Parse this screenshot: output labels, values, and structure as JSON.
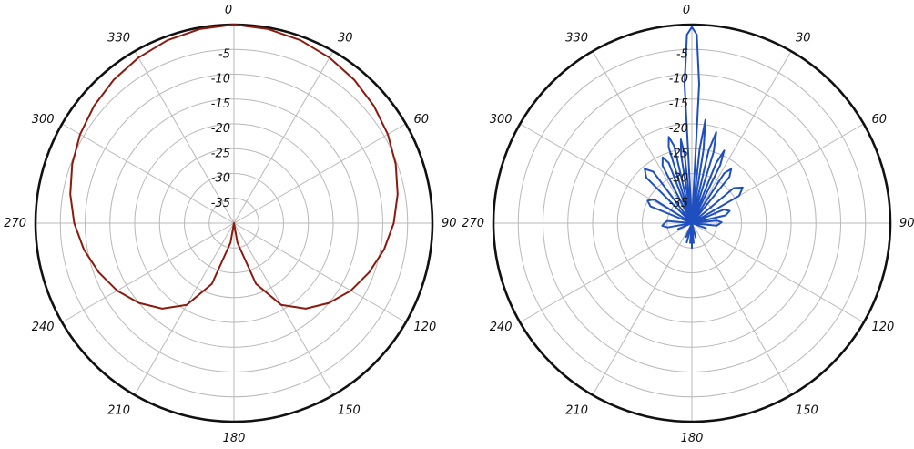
{
  "figure": {
    "background": "#ffffff",
    "grid_color": "#b8b8b8",
    "ring_color": "#111111"
  },
  "chart_data": [
    {
      "type": "polar-line",
      "title": "",
      "angle_unit": "degrees",
      "angle_direction": "clockwise",
      "zero_location": "top",
      "angular_ticks": [
        {
          "angle": 0,
          "label": "0"
        },
        {
          "angle": 30,
          "label": "30"
        },
        {
          "angle": 60,
          "label": "60"
        },
        {
          "angle": 90,
          "label": "90"
        },
        {
          "angle": 120,
          "label": "120"
        },
        {
          "angle": 150,
          "label": "150"
        },
        {
          "angle": 180,
          "label": "180"
        },
        {
          "angle": 210,
          "label": "210"
        },
        {
          "angle": 240,
          "label": "240"
        },
        {
          "angle": 270,
          "label": "270"
        },
        {
          "angle": 300,
          "label": "300"
        },
        {
          "angle": 330,
          "label": "330"
        }
      ],
      "radial_ticks": [
        {
          "value": -5,
          "label": "-5"
        },
        {
          "value": -10,
          "label": "-10"
        },
        {
          "value": -15,
          "label": "-15"
        },
        {
          "value": -20,
          "label": "-20"
        },
        {
          "value": -25,
          "label": "-25"
        },
        {
          "value": -30,
          "label": "-30"
        },
        {
          "value": -35,
          "label": "-35"
        }
      ],
      "rlim": [
        -40,
        0
      ],
      "grid": true,
      "series": [
        {
          "color": "#8b1a0e",
          "points": [
            [
              0,
              0
            ],
            [
              10,
              -0.3
            ],
            [
              20,
              -0.8
            ],
            [
              30,
              -1.5
            ],
            [
              40,
              -2.3
            ],
            [
              50,
              -3.2
            ],
            [
              60,
              -4.2
            ],
            [
              70,
              -5.3
            ],
            [
              80,
              -6.5
            ],
            [
              90,
              -7.8
            ],
            [
              100,
              -9.3
            ],
            [
              110,
              -11
            ],
            [
              120,
              -12.8
            ],
            [
              130,
              -15
            ],
            [
              140,
              -17.5
            ],
            [
              150,
              -21
            ],
            [
              160,
              -27
            ],
            [
              170,
              -36
            ],
            [
              180,
              -40
            ],
            [
              190,
              -36
            ],
            [
              200,
              -27
            ],
            [
              210,
              -21
            ],
            [
              220,
              -17.5
            ],
            [
              230,
              -15
            ],
            [
              240,
              -12.8
            ],
            [
              250,
              -11
            ],
            [
              260,
              -9.3
            ],
            [
              270,
              -7.8
            ],
            [
              280,
              -6.5
            ],
            [
              290,
              -5.3
            ],
            [
              300,
              -4.2
            ],
            [
              310,
              -3.2
            ],
            [
              320,
              -2.3
            ],
            [
              330,
              -1.5
            ],
            [
              340,
              -0.8
            ],
            [
              350,
              -0.3
            ],
            [
              360,
              0
            ]
          ]
        }
      ]
    },
    {
      "type": "polar-line",
      "title": "",
      "angle_unit": "degrees",
      "angle_direction": "clockwise",
      "zero_location": "top",
      "angular_ticks": [
        {
          "angle": 0,
          "label": "0"
        },
        {
          "angle": 30,
          "label": "30"
        },
        {
          "angle": 60,
          "label": "60"
        },
        {
          "angle": 90,
          "label": "90"
        },
        {
          "angle": 120,
          "label": "120"
        },
        {
          "angle": 150,
          "label": "150"
        },
        {
          "angle": 180,
          "label": "180"
        },
        {
          "angle": 210,
          "label": "210"
        },
        {
          "angle": 240,
          "label": "240"
        },
        {
          "angle": 270,
          "label": "270"
        },
        {
          "angle": 300,
          "label": "300"
        },
        {
          "angle": 330,
          "label": "330"
        }
      ],
      "radial_ticks": [
        {
          "value": -5,
          "label": "-5"
        },
        {
          "value": -10,
          "label": "-10"
        },
        {
          "value": -15,
          "label": "-15"
        },
        {
          "value": -20,
          "label": "-20"
        },
        {
          "value": -25,
          "label": "-25"
        },
        {
          "value": -30,
          "label": "-30"
        },
        {
          "value": -35,
          "label": "-35"
        }
      ],
      "rlim": [
        -40,
        0
      ],
      "grid": true,
      "series": [
        {
          "color": "#1f4fbf",
          "points": [
            [
              0,
              -0.5
            ],
            [
              1.5,
              -2
            ],
            [
              3,
              -12
            ],
            [
              4.5,
              -40
            ],
            [
              6,
              -25
            ],
            [
              7.5,
              -19
            ],
            [
              9,
              -25
            ],
            [
              10.5,
              -40
            ],
            [
              13,
              -25
            ],
            [
              15,
              -21
            ],
            [
              17,
              -25
            ],
            [
              19,
              -40
            ],
            [
              22,
              -27
            ],
            [
              24,
              -24
            ],
            [
              26,
              -27
            ],
            [
              28,
              -40
            ],
            [
              33,
              -28
            ],
            [
              36,
              -26.5
            ],
            [
              39,
              -28
            ],
            [
              42,
              -40
            ],
            [
              50,
              -29
            ],
            [
              55,
              -27.5
            ],
            [
              60,
              -29
            ],
            [
              64,
              -40
            ],
            [
              67,
              -33
            ],
            [
              72,
              -32
            ],
            [
              77,
              -33
            ],
            [
              82,
              -40
            ],
            [
              84,
              -35
            ],
            [
              88,
              -34
            ],
            [
              92,
              -34.5
            ],
            [
              96,
              -35
            ],
            [
              99,
              -40
            ],
            [
              110,
              -37
            ],
            [
              115,
              -40
            ],
            [
              135,
              -40
            ],
            [
              165,
              -37
            ],
            [
              170,
              -40
            ],
            [
              175,
              -36
            ],
            [
              178,
              -40
            ],
            [
              180,
              -35
            ],
            [
              182,
              -40
            ],
            [
              185,
              -36
            ],
            [
              190,
              -40
            ],
            [
              195,
              -36
            ],
            [
              198,
              -40
            ],
            [
              203,
              -37
            ],
            [
              206,
              -40
            ],
            [
              230,
              -40
            ],
            [
              247,
              -37
            ],
            [
              252,
              -40
            ],
            [
              260,
              -35
            ],
            [
              265,
              -34
            ],
            [
              270,
              -34.5
            ],
            [
              275,
              -35
            ],
            [
              278,
              -40
            ],
            [
              292,
              -31
            ],
            [
              297,
              -30
            ],
            [
              302,
              -31
            ],
            [
              306,
              -40
            ],
            [
              315,
              -27
            ],
            [
              319,
              -25.5
            ],
            [
              323,
              -27
            ],
            [
              327,
              -40
            ],
            [
              333,
              -27
            ],
            [
              336,
              -25.5
            ],
            [
              339,
              -27
            ],
            [
              341,
              -40
            ],
            [
              343,
              -24
            ],
            [
              345,
              -22
            ],
            [
              347,
              -24
            ],
            [
              349,
              -40
            ],
            [
              351,
              -26
            ],
            [
              352.5,
              -23
            ],
            [
              354,
              -26
            ],
            [
              355.5,
              -40
            ],
            [
              357,
              -12
            ],
            [
              358.5,
              -2
            ],
            [
              360,
              -0.5
            ]
          ]
        }
      ]
    }
  ]
}
